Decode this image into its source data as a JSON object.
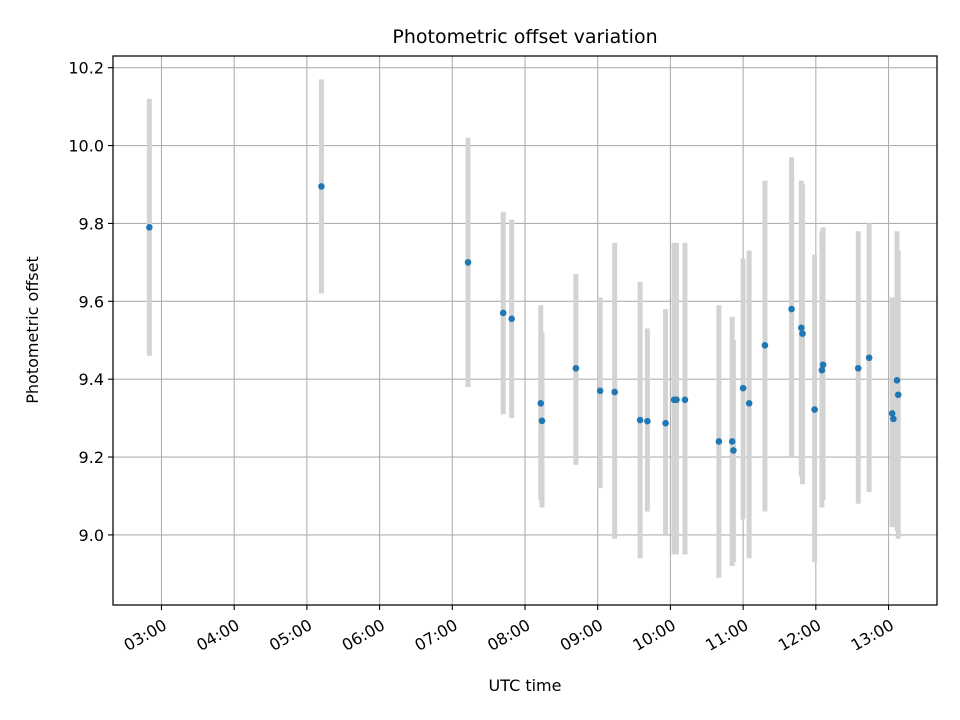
{
  "chart_data": {
    "type": "scatter",
    "title": "Photometric offset variation",
    "xlabel": "UTC time",
    "ylabel": "Photometric offset",
    "x_unit": "UTC time (HH:MM)",
    "xlim": [
      "02:20",
      "13:40"
    ],
    "ylim": [
      8.82,
      10.23
    ],
    "x_ticks": [
      "03:00",
      "04:00",
      "05:00",
      "06:00",
      "07:00",
      "08:00",
      "09:00",
      "10:00",
      "11:00",
      "12:00",
      "13:00"
    ],
    "y_ticks": [
      "9.0",
      "9.2",
      "9.4",
      "9.6",
      "9.8",
      "10.0",
      "10.2"
    ],
    "grid": true,
    "errorbars": true,
    "colors": {
      "marker": "#1f77b4",
      "errorbar": "#d3d3d3",
      "grid": "#b0b0b0"
    },
    "points": [
      {
        "t": "02:50",
        "y": 9.79,
        "lo": 9.46,
        "hi": 10.12
      },
      {
        "t": "05:12",
        "y": 9.895,
        "lo": 9.62,
        "hi": 10.17
      },
      {
        "t": "07:13",
        "y": 9.7,
        "lo": 9.38,
        "hi": 10.02
      },
      {
        "t": "07:42",
        "y": 9.57,
        "lo": 9.31,
        "hi": 9.83
      },
      {
        "t": "07:49",
        "y": 9.555,
        "lo": 9.3,
        "hi": 9.81
      },
      {
        "t": "08:13",
        "y": 9.338,
        "lo": 9.09,
        "hi": 9.59
      },
      {
        "t": "08:14",
        "y": 9.293,
        "lo": 9.07,
        "hi": 9.52
      },
      {
        "t": "08:42",
        "y": 9.428,
        "lo": 9.18,
        "hi": 9.67
      },
      {
        "t": "09:02",
        "y": 9.37,
        "lo": 9.12,
        "hi": 9.61
      },
      {
        "t": "09:14",
        "y": 9.367,
        "lo": 8.99,
        "hi": 9.75
      },
      {
        "t": "09:35",
        "y": 9.295,
        "lo": 8.94,
        "hi": 9.65
      },
      {
        "t": "09:41",
        "y": 9.292,
        "lo": 9.06,
        "hi": 9.53
      },
      {
        "t": "09:56",
        "y": 9.287,
        "lo": 9.0,
        "hi": 9.58
      },
      {
        "t": "10:03",
        "y": 9.347,
        "lo": 8.95,
        "hi": 9.75
      },
      {
        "t": "10:05",
        "y": 9.347,
        "lo": 8.95,
        "hi": 9.75
      },
      {
        "t": "10:12",
        "y": 9.347,
        "lo": 8.95,
        "hi": 9.75
      },
      {
        "t": "10:40",
        "y": 9.24,
        "lo": 8.89,
        "hi": 9.59
      },
      {
        "t": "10:51",
        "y": 9.24,
        "lo": 8.92,
        "hi": 9.56
      },
      {
        "t": "10:52",
        "y": 9.217,
        "lo": 8.93,
        "hi": 9.5
      },
      {
        "t": "11:00",
        "y": 9.377,
        "lo": 9.04,
        "hi": 9.71
      },
      {
        "t": "11:05",
        "y": 9.338,
        "lo": 8.94,
        "hi": 9.73
      },
      {
        "t": "11:18",
        "y": 9.487,
        "lo": 9.06,
        "hi": 9.91
      },
      {
        "t": "11:40",
        "y": 9.58,
        "lo": 9.2,
        "hi": 9.97
      },
      {
        "t": "11:48",
        "y": 9.532,
        "lo": 9.15,
        "hi": 9.91
      },
      {
        "t": "11:49",
        "y": 9.517,
        "lo": 9.13,
        "hi": 9.9
      },
      {
        "t": "11:59",
        "y": 9.322,
        "lo": 8.93,
        "hi": 9.72
      },
      {
        "t": "12:05",
        "y": 9.423,
        "lo": 9.07,
        "hi": 9.78
      },
      {
        "t": "12:06",
        "y": 9.437,
        "lo": 9.09,
        "hi": 9.79
      },
      {
        "t": "12:35",
        "y": 9.428,
        "lo": 9.08,
        "hi": 9.78
      },
      {
        "t": "12:44",
        "y": 9.455,
        "lo": 9.11,
        "hi": 9.8
      },
      {
        "t": "13:03",
        "y": 9.312,
        "lo": 9.02,
        "hi": 9.61
      },
      {
        "t": "13:04",
        "y": 9.298,
        "lo": 9.02,
        "hi": 9.58
      },
      {
        "t": "13:07",
        "y": 9.397,
        "lo": 9.01,
        "hi": 9.78
      },
      {
        "t": "13:08",
        "y": 9.36,
        "lo": 8.99,
        "hi": 9.73
      }
    ]
  }
}
